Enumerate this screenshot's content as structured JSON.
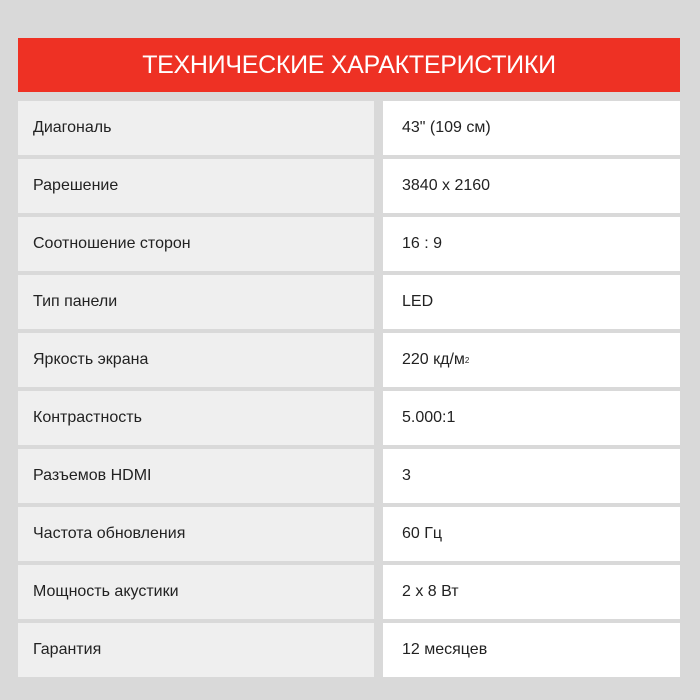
{
  "header": {
    "title": "ТЕХНИЧЕСКИЕ ХАРАКТЕРИСТИКИ",
    "color": "#ee3124"
  },
  "specs": [
    {
      "label": "Диагональ",
      "value": "43\" (109 см)"
    },
    {
      "label": "Рарешение",
      "value": "3840 x 2160"
    },
    {
      "label": "Соотношение сторон",
      "value": "16 : 9"
    },
    {
      "label": "Тип панели",
      "value": "LED"
    },
    {
      "label": "Яркость экрана",
      "value": "220 кд/м",
      "sup": "2"
    },
    {
      "label": "Контрастность",
      "value": "5.000:1"
    },
    {
      "label": "Разъемов HDMI",
      "value": "3"
    },
    {
      "label": "Частота обновления",
      "value": "60 Гц"
    },
    {
      "label": "Мощность акустики",
      "value": "2 x 8 Вт"
    },
    {
      "label": "Гарантия",
      "value": "12 месяцев"
    }
  ]
}
